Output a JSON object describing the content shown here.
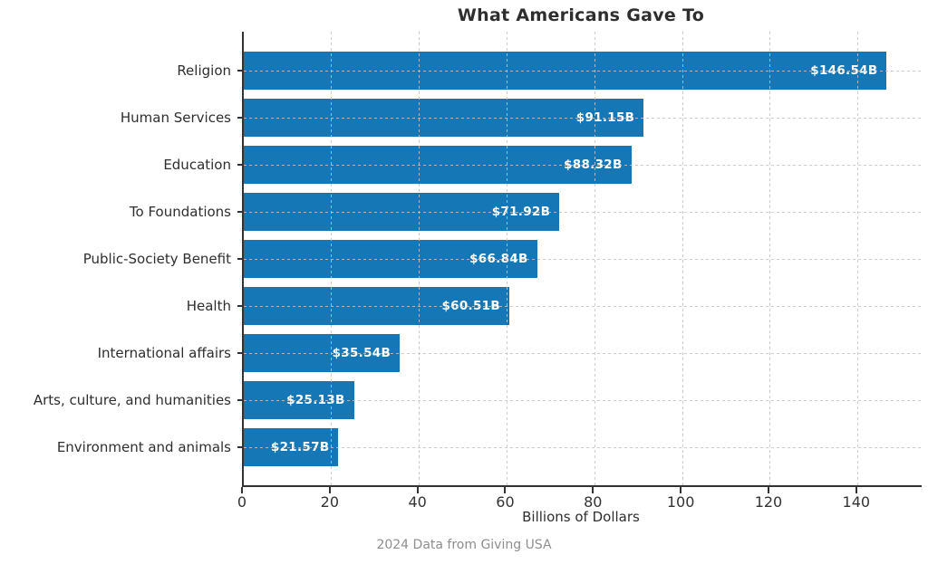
{
  "title": "What Americans Gave To",
  "footer": "2024 Data from Giving USA",
  "chart_data": {
    "type": "bar",
    "orientation": "horizontal",
    "title": "What Americans Gave To",
    "xlabel": "Billions of Dollars",
    "ylabel": "",
    "categories": [
      "Religion",
      "Human Services",
      "Education",
      "To Foundations",
      "Public-Society Benefit",
      "Health",
      "International affairs",
      "Arts, culture, and humanities",
      "Environment and animals"
    ],
    "values": [
      146.54,
      91.15,
      88.32,
      71.92,
      66.84,
      60.51,
      35.54,
      25.13,
      21.57
    ],
    "value_labels": [
      "$146.54B",
      "$91.15B",
      "$88.32B",
      "$71.92B",
      "$66.84B",
      "$60.51B",
      "$35.54B",
      "$25.13B",
      "$21.57B"
    ],
    "xlim": [
      0,
      154.5
    ],
    "xticks": [
      0,
      20,
      40,
      60,
      80,
      100,
      120,
      140
    ],
    "xtick_labels": [
      "0",
      "20",
      "40",
      "60",
      "80",
      "100",
      "120",
      "140"
    ],
    "grid": true,
    "grid_style": "dashed",
    "legend": false,
    "bar_color": "#1577b5",
    "value_label_color": "#ffffff",
    "axis_color": "#333333",
    "text_color": "#2e2e2e",
    "source_note": "2024 Data from Giving USA"
  }
}
